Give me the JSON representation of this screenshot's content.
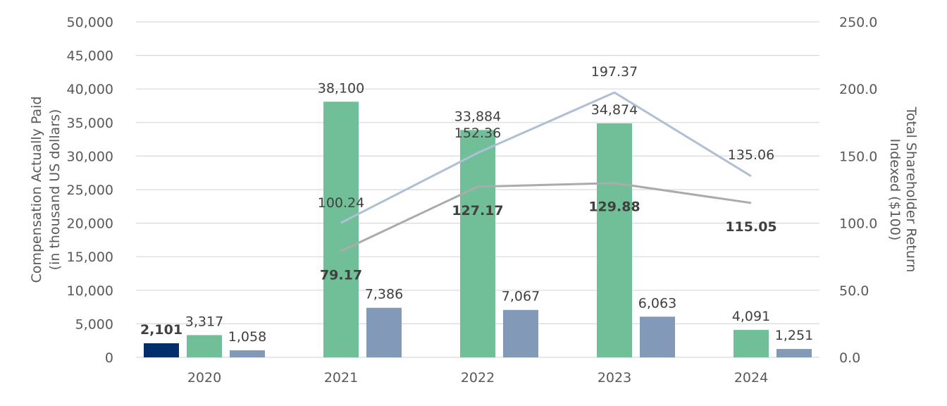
{
  "chart_data": {
    "type": "bar",
    "categories": [
      "2020",
      "2021",
      "2022",
      "2023",
      "2024"
    ],
    "bar_series": [
      {
        "color": "#002f6c",
        "values": [
          2101,
          null,
          null,
          null,
          null
        ],
        "labels": [
          "2,101",
          "",
          "",
          "",
          ""
        ],
        "bold": true
      },
      {
        "color": "#71bf98",
        "values": [
          3317,
          38100,
          33884,
          34874,
          4091
        ],
        "labels": [
          "3,317",
          "38,100",
          "33,884",
          "34,874",
          "4,091"
        ],
        "bold": false
      },
      {
        "color": "#8299b8",
        "values": [
          1058,
          7386,
          7067,
          6063,
          1251
        ],
        "labels": [
          "1,058",
          "7,386",
          "7,067",
          "6,063",
          "1,251"
        ],
        "bold": false
      }
    ],
    "line_series": [
      {
        "color": "#afbfd6",
        "values": [
          null,
          100.24,
          152.36,
          197.37,
          135.06
        ],
        "labels": [
          "",
          "100.24",
          "152.36",
          "197.37",
          "135.06"
        ],
        "bold": false
      },
      {
        "color": "#ababab",
        "values": [
          null,
          79.17,
          127.17,
          129.88,
          115.05
        ],
        "labels": [
          "",
          "79.17",
          "127.17",
          "129.88",
          "115.05"
        ],
        "bold": true
      }
    ],
    "y_left": {
      "label_line1": "Compensation Actually Paid",
      "label_line2": "(in thousand US dollars)",
      "ylim": [
        0,
        50000
      ],
      "ticks": [
        "0",
        "5,000",
        "10,000",
        "15,000",
        "20,000",
        "25,000",
        "30,000",
        "35,000",
        "40,000",
        "45,000",
        "50,000"
      ]
    },
    "y_right": {
      "label_line1": "Total Shareholder Return",
      "label_line2": "Indexed ($100)",
      "ylim": [
        0,
        250
      ],
      "ticks": [
        "0.0",
        "50.0",
        "100.0",
        "150.0",
        "200.0",
        "250.0"
      ]
    },
    "grid": true
  }
}
